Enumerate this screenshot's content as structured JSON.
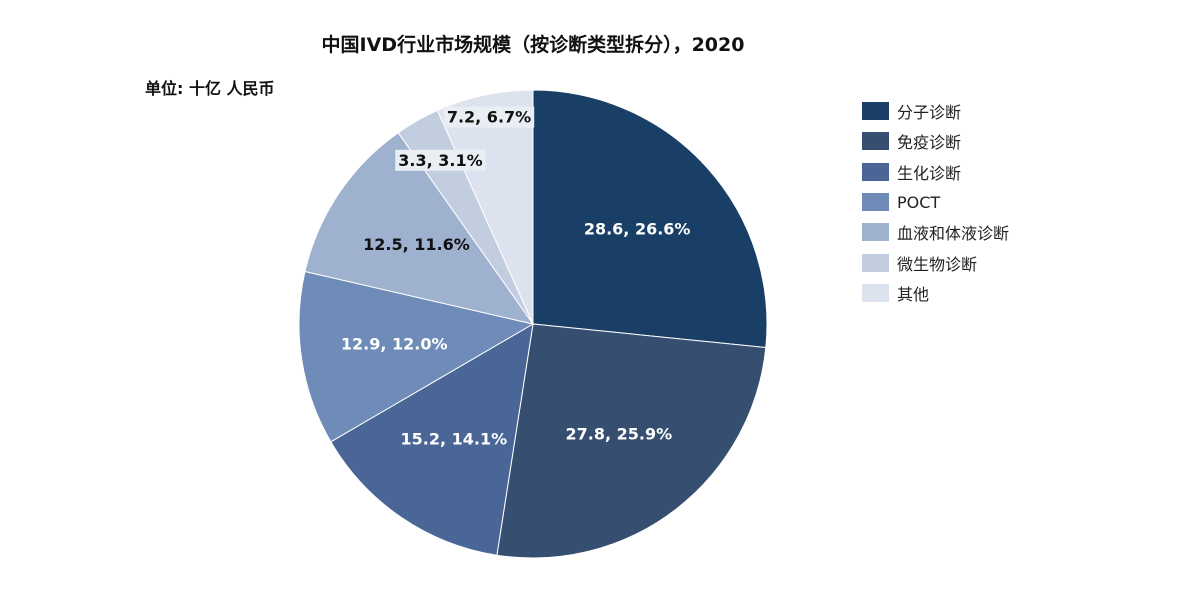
{
  "chart_data": {
    "type": "pie",
    "title": "中国IVD行业市场规模（按诊断类型拆分），2020",
    "unit_label": "单位: 十亿 人民币",
    "categories": [
      "分子诊断",
      "免疫诊断",
      "生化诊断",
      "POCT",
      "血液和体液诊断",
      "微生物诊断",
      "其他"
    ],
    "values": [
      28.6,
      27.8,
      15.2,
      12.9,
      12.5,
      3.3,
      7.2
    ],
    "percentages": [
      26.6,
      25.9,
      14.1,
      12.0,
      11.6,
      3.1,
      6.7
    ],
    "data_labels": [
      "28.6, 26.6%",
      "27.8, 25.9%",
      "15.2, 14.1%",
      "12.9, 12.0%",
      "12.5, 11.6%",
      "3.3, 3.1%",
      "7.2, 6.7%"
    ],
    "colors": [
      "#1a3f66",
      "#364f70",
      "#4a6696",
      "#6f8cb8",
      "#9eb1cf",
      "#c2cde0",
      "#dde3ee"
    ],
    "label_colors": [
      "#ffffff",
      "#ffffff",
      "#ffffff",
      "#ffffff",
      "#111111",
      "#111111",
      "#111111"
    ],
    "label_backgrounds": [
      false,
      false,
      false,
      false,
      false,
      true,
      true
    ],
    "start_angle": "12 o'clock",
    "direction": "clockwise",
    "legend_position": "right"
  }
}
